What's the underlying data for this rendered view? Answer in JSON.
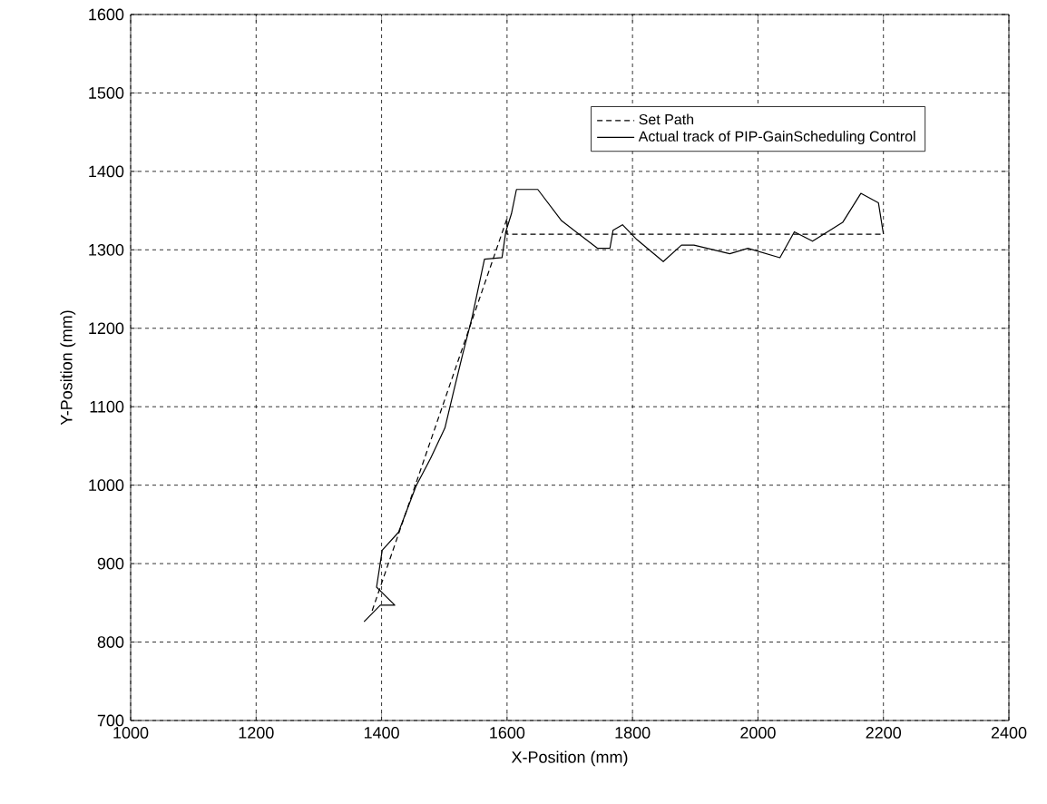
{
  "chart_data": {
    "type": "line",
    "xlabel": "X-Position (mm)",
    "ylabel": "Y-Position (mm)",
    "xlim": [
      1000,
      2400
    ],
    "ylim": [
      700,
      1600
    ],
    "xticks": [
      1000,
      1200,
      1400,
      1600,
      1800,
      2000,
      2200,
      2400
    ],
    "yticks": [
      700,
      800,
      900,
      1000,
      1100,
      1200,
      1300,
      1400,
      1500,
      1600
    ],
    "grid": true,
    "legend": "top right",
    "series": [
      {
        "name": "Set Path",
        "color": "#000000",
        "line_style": "dashed",
        "x": [
          1385,
          1600,
          1600,
          2200
        ],
        "values": [
          840,
          1340,
          1320,
          1320
        ]
      },
      {
        "name": "Actual track of PIP-GainScheduling Control",
        "color": "#000000",
        "line_style": "solid",
        "x": [
          1372,
          1398,
          1421,
          1392,
          1401,
          1427,
          1455,
          1478,
          1501,
          1515,
          1529,
          1544,
          1564,
          1592,
          1598,
          1607,
          1615,
          1649,
          1687,
          1744,
          1764,
          1769,
          1784,
          1807,
          1849,
          1878,
          1898,
          1955,
          1984,
          2035,
          2058,
          2087,
          2135,
          2164,
          2192,
          2200
        ],
        "values": [
          826,
          847,
          847,
          870,
          917,
          940,
          999,
          1034,
          1073,
          1120,
          1166,
          1213,
          1288,
          1290,
          1323,
          1346,
          1377,
          1377,
          1337,
          1302,
          1302,
          1325,
          1332,
          1313,
          1285,
          1306,
          1306,
          1295,
          1302,
          1290,
          1323,
          1311,
          1335,
          1372,
          1360,
          1320
        ]
      }
    ]
  }
}
